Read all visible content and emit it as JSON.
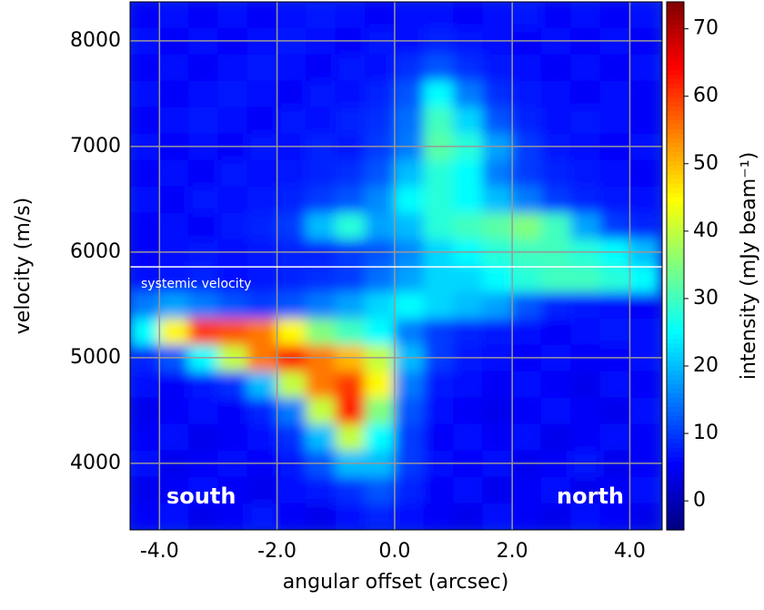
{
  "chart_data": {
    "type": "heatmap",
    "x_label": "angular offset (arcsec)",
    "y_label": "velocity (m/s)",
    "colormap": "jet",
    "grid": true,
    "xlim": [
      -4.5,
      4.55
    ],
    "ylim": [
      3370,
      8370
    ],
    "xticks": [
      {
        "value": -4,
        "label": "-4.0"
      },
      {
        "value": -2,
        "label": "-2.0"
      },
      {
        "value": 0,
        "label": "0.0"
      },
      {
        "value": 2,
        "label": "2.0"
      },
      {
        "value": 4,
        "label": "4.0"
      }
    ],
    "yticks": [
      4000,
      5000,
      6000,
      7000,
      8000
    ],
    "colorbar": {
      "label": "intensity (mJy beam⁻¹)",
      "lim": [
        -4.3,
        74
      ],
      "ticks": [
        0,
        10,
        20,
        30,
        40,
        50,
        60,
        70
      ]
    },
    "reference_line": {
      "value": 5860,
      "label": "systemic velocity"
    },
    "annotations": [
      "south",
      "north"
    ],
    "x": [
      -4.25,
      -3.75,
      -3.25,
      -2.75,
      -2.25,
      -1.75,
      -1.25,
      -0.75,
      -0.25,
      0.25,
      0.75,
      1.25,
      1.75,
      2.25,
      2.75,
      3.25,
      3.75,
      4.25
    ],
    "y": [
      3500,
      3750,
      4000,
      4250,
      4500,
      4750,
      5000,
      5250,
      5500,
      5750,
      6000,
      6250,
      6500,
      6750,
      7000,
      7250,
      7500,
      7750,
      8000,
      8250
    ],
    "z": [
      [
        5,
        6,
        4,
        5,
        7,
        5,
        4,
        6,
        8,
        6,
        5,
        4,
        6,
        5,
        4,
        6,
        5,
        4
      ],
      [
        4,
        5,
        6,
        5,
        4,
        6,
        7,
        9,
        12,
        8,
        5,
        6,
        4,
        5,
        6,
        4,
        5,
        6
      ],
      [
        6,
        4,
        5,
        6,
        5,
        7,
        12,
        20,
        20,
        10,
        6,
        5,
        6,
        4,
        5,
        7,
        4,
        5
      ],
      [
        5,
        6,
        4,
        5,
        6,
        9,
        20,
        40,
        25,
        10,
        5,
        6,
        5,
        6,
        4,
        5,
        6,
        5
      ],
      [
        4,
        5,
        6,
        5,
        8,
        15,
        40,
        62,
        35,
        12,
        6,
        5,
        4,
        5,
        6,
        5,
        4,
        6
      ],
      [
        6,
        5,
        7,
        9,
        20,
        40,
        55,
        60,
        45,
        15,
        7,
        6,
        5,
        6,
        5,
        4,
        6,
        5
      ],
      [
        8,
        12,
        25,
        40,
        55,
        62,
        55,
        50,
        40,
        20,
        10,
        7,
        6,
        5,
        6,
        5,
        5,
        6
      ],
      [
        25,
        45,
        60,
        58,
        55,
        45,
        35,
        30,
        25,
        15,
        10,
        8,
        7,
        6,
        5,
        6,
        7,
        6
      ],
      [
        15,
        18,
        15,
        12,
        10,
        12,
        15,
        18,
        22,
        25,
        22,
        20,
        18,
        12,
        8,
        7,
        6,
        5
      ],
      [
        6,
        7,
        8,
        6,
        7,
        8,
        9,
        10,
        14,
        18,
        22,
        22,
        25,
        28,
        30,
        30,
        28,
        25
      ],
      [
        5,
        6,
        7,
        6,
        7,
        8,
        8,
        10,
        12,
        16,
        22,
        25,
        28,
        30,
        30,
        28,
        25,
        20
      ],
      [
        5,
        6,
        5,
        7,
        8,
        10,
        20,
        28,
        18,
        20,
        28,
        30,
        32,
        35,
        30,
        18,
        10,
        8
      ],
      [
        6,
        5,
        7,
        6,
        7,
        8,
        10,
        12,
        16,
        25,
        28,
        25,
        20,
        15,
        10,
        8,
        7,
        6
      ],
      [
        5,
        6,
        5,
        7,
        6,
        7,
        8,
        9,
        12,
        20,
        28,
        25,
        15,
        10,
        8,
        7,
        6,
        5
      ],
      [
        6,
        5,
        6,
        5,
        7,
        6,
        8,
        7,
        10,
        15,
        32,
        28,
        18,
        10,
        7,
        6,
        5,
        6
      ],
      [
        5,
        6,
        7,
        6,
        5,
        7,
        6,
        8,
        9,
        14,
        30,
        22,
        12,
        8,
        6,
        7,
        6,
        5
      ],
      [
        6,
        5,
        6,
        7,
        6,
        5,
        7,
        6,
        8,
        12,
        25,
        15,
        9,
        7,
        6,
        5,
        6,
        5
      ],
      [
        5,
        6,
        5,
        6,
        7,
        6,
        5,
        7,
        6,
        9,
        12,
        9,
        7,
        6,
        5,
        6,
        5,
        6
      ],
      [
        6,
        5,
        6,
        5,
        6,
        7,
        6,
        5,
        7,
        6,
        8,
        7,
        6,
        5,
        6,
        5,
        6,
        5
      ],
      [
        5,
        6,
        5,
        6,
        5,
        6,
        7,
        6,
        5,
        6,
        6,
        5,
        6,
        7,
        5,
        6,
        5,
        6
      ]
    ]
  }
}
